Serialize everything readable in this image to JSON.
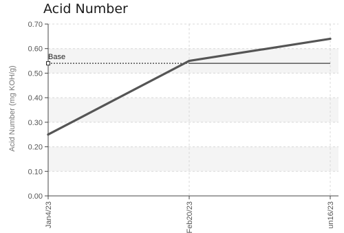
{
  "chart_data": {
    "type": "line",
    "title": "Acid Number",
    "ylabel": "Acid Number (mg KOH/g)",
    "xlabel": "",
    "ylim": [
      0,
      0.7
    ],
    "yticks": [
      "0.00",
      "0.10",
      "0.20",
      "0.30",
      "0.40",
      "0.50",
      "0.60",
      "0.70"
    ],
    "x": [
      "Jan4/23",
      "Feb20/23",
      "un16/23"
    ],
    "series": [
      {
        "values": [
          0.25,
          0.55,
          0.64
        ]
      }
    ],
    "baseline": {
      "label": "Base",
      "value": 0.54
    },
    "grid": true,
    "colors": {
      "series": "#555555",
      "baseline": "#666666",
      "band": "#f4f4f4",
      "grid": "#d8d8d8"
    }
  }
}
